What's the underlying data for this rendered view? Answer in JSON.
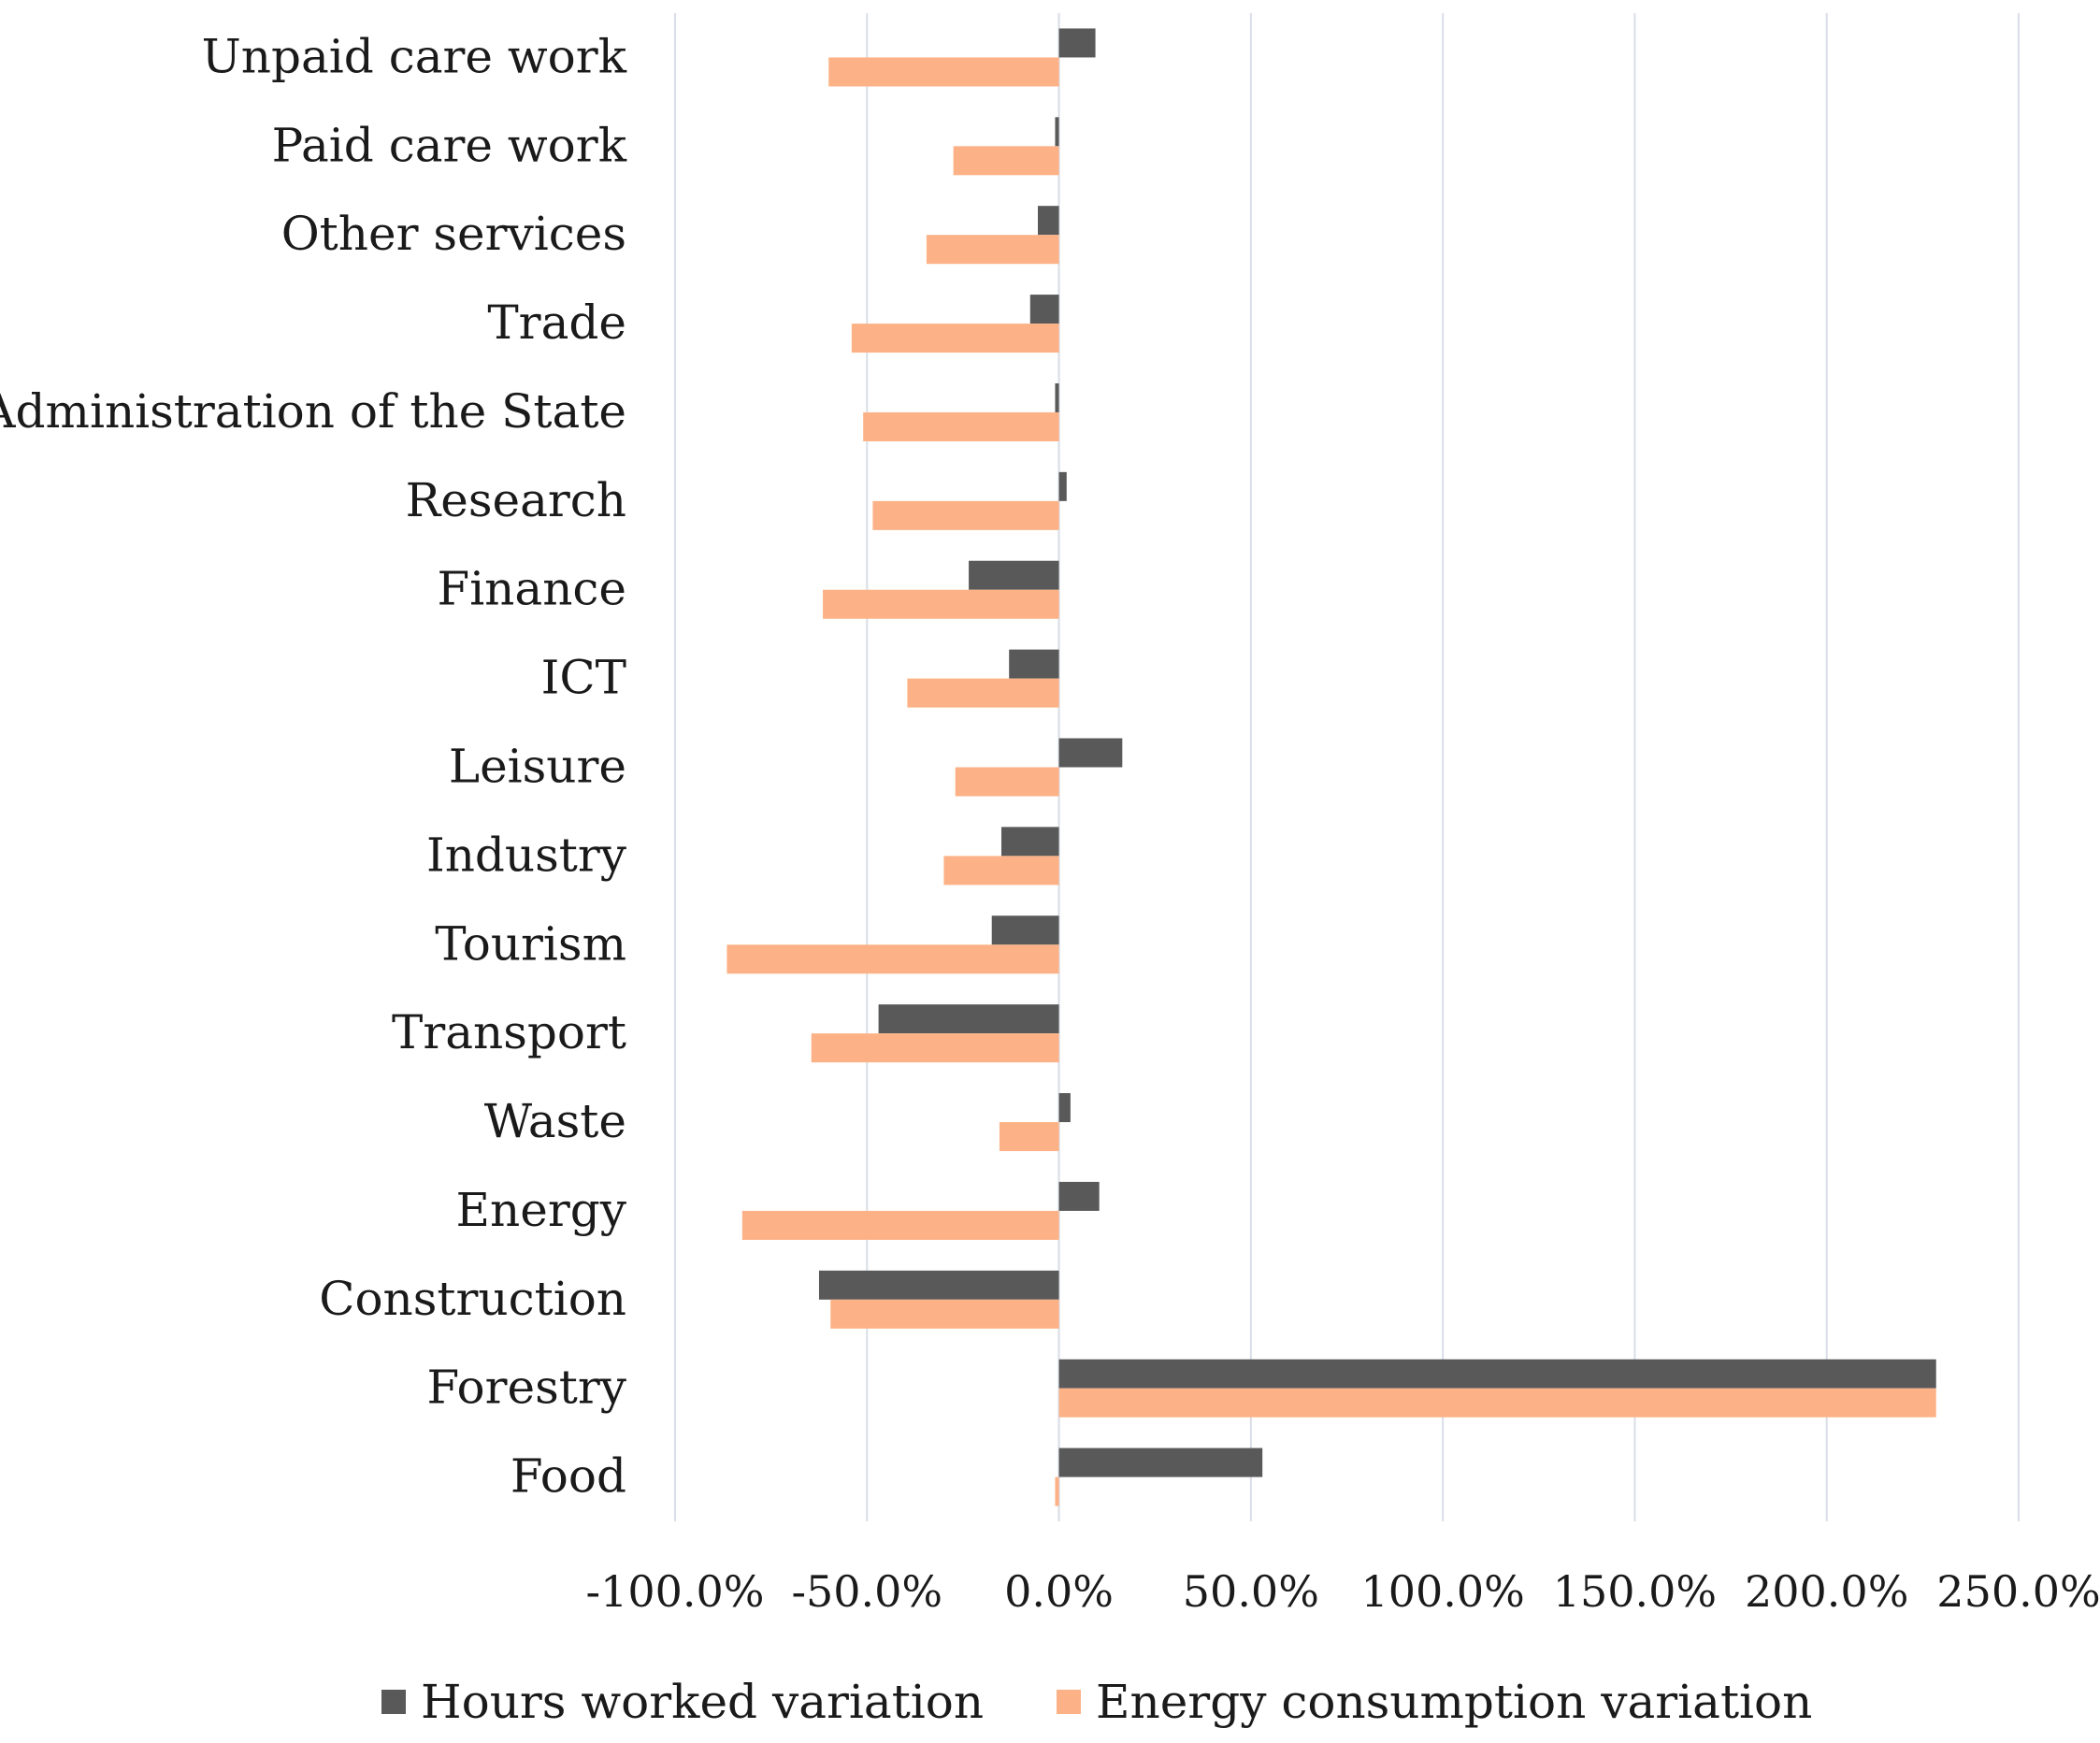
{
  "chart_data": {
    "type": "bar",
    "orientation": "horizontal",
    "title": "",
    "xlabel": "",
    "ylabel": "",
    "xlim": [
      -100,
      250
    ],
    "x_ticks": [
      -100,
      -50,
      0,
      50,
      100,
      150,
      200,
      250
    ],
    "x_tick_labels": [
      "-100.0%",
      "-50.0%",
      "0.0%",
      "50.0%",
      "100.0%",
      "150.0%",
      "200.0%",
      "250.0%"
    ],
    "grid": "vertical",
    "legend_position": "bottom",
    "categories": [
      "Unpaid care work",
      "Paid care work",
      "Other services",
      "Trade",
      "Administration of the State",
      "Research",
      "Finance",
      "ICT",
      "Leisure",
      "Industry",
      "Tourism",
      "Transport",
      "Waste",
      "Energy",
      "Construction",
      "Forestry",
      "Food"
    ],
    "series": [
      {
        "name": "Hours worked variation",
        "color": "#595959",
        "values": [
          9.5,
          -1.0,
          -5.5,
          -7.5,
          -1.0,
          2.0,
          -23.5,
          -13.0,
          16.5,
          -15.0,
          -17.5,
          -47.0,
          3.0,
          10.5,
          -62.5,
          228.5,
          53.0
        ]
      },
      {
        "name": "Energy consumption variation",
        "color": "#FCB286",
        "values": [
          -60.0,
          -27.5,
          -34.5,
          -54.0,
          -51.0,
          -48.5,
          -61.5,
          -39.5,
          -27.0,
          -30.0,
          -86.5,
          -64.5,
          -15.5,
          -82.5,
          -59.5,
          228.5,
          -1.0
        ]
      }
    ]
  }
}
